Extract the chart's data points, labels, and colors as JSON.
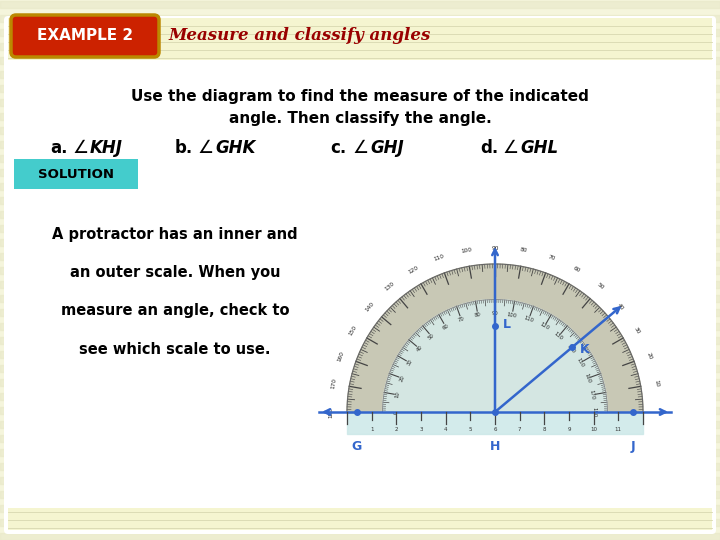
{
  "bg_color": "#f5f5dc",
  "stripe_colors": [
    "#f0f0d0",
    "#fafae8"
  ],
  "white_area_color": "#ffffff",
  "header_stripe_color": "#f0f0cc",
  "badge_color": "#cc2200",
  "badge_border_color": "#bb8800",
  "badge_text": "EXAMPLE 2",
  "badge_text_color": "#ffffff",
  "header_title": "Measure and classify angles",
  "header_title_color": "#990000",
  "body_line1": "Use the diagram to find the measure of the indicated",
  "body_line2": "angle. Then classify the angle.",
  "angle_a": "a.",
  "angle_a_name": "KHJ",
  "angle_b": "b.",
  "angle_b_name": "GHK",
  "angle_c": "c.",
  "angle_c_name": "GHJ",
  "angle_d": "d.",
  "angle_d_name": "GHL",
  "solution_bg": "#44cccc",
  "solution_text": "SOLUTION",
  "prot_text1": "A protractor has an inner and",
  "prot_text2": "an outer scale. When you",
  "prot_text3": "measure an angle, check to",
  "prot_text4": "see which scale to use.",
  "prot_body_color": "#c8c8b5",
  "prot_inner_color": "#d8eeee",
  "prot_shade_color": "#cce8e8",
  "prot_line_color": "#3366cc",
  "prot_tick_color": "#444444",
  "label_color": "#3366cc"
}
